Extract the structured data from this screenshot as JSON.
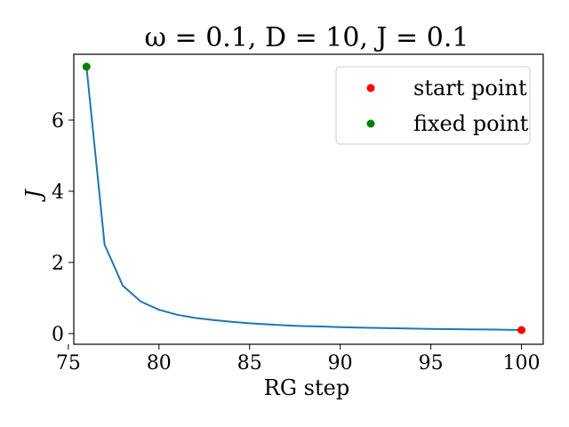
{
  "chart_data": {
    "type": "line",
    "title": "ω = 0.1, D = 10, J = 0.1",
    "xlabel": "RG step",
    "ylabel": "J",
    "xlim": [
      75.3,
      101.2
    ],
    "ylim": [
      -0.3,
      7.85
    ],
    "xticks": [
      75,
      80,
      85,
      90,
      95,
      100
    ],
    "yticks": [
      0,
      2,
      4,
      6
    ],
    "grid": false,
    "legend_position": "top-right",
    "series": [
      {
        "color": "#1f77b4",
        "x": [
          76,
          77,
          78,
          79,
          80,
          81,
          82,
          83,
          84,
          85,
          86,
          87,
          88,
          89,
          90,
          91,
          92,
          93,
          94,
          95,
          96,
          97,
          98,
          99,
          100
        ],
        "y": [
          7.5,
          2.5,
          1.35,
          0.9,
          0.67,
          0.53,
          0.44,
          0.38,
          0.33,
          0.29,
          0.26,
          0.23,
          0.21,
          0.2,
          0.18,
          0.17,
          0.16,
          0.15,
          0.14,
          0.13,
          0.125,
          0.12,
          0.115,
          0.11,
          0.1
        ]
      }
    ],
    "points": [
      {
        "name": "start point",
        "x": 100,
        "y": 0.1,
        "color": "#ff0000"
      },
      {
        "name": "fixed point",
        "x": 76,
        "y": 7.5,
        "color": "#008000"
      }
    ]
  }
}
